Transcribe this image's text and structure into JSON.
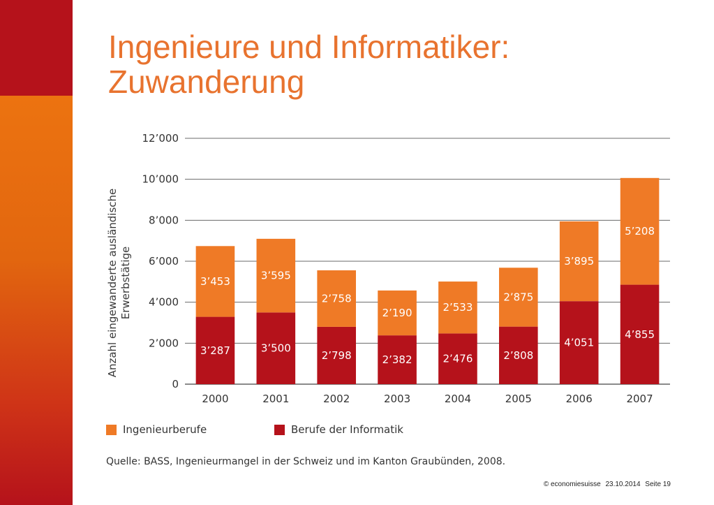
{
  "slide": {
    "title_line1": "Ingenieure und Informatiker:",
    "title_line2": "Zuwanderung",
    "source": "Quelle: BASS, Ingenieurmangel in der Schweiz und im Kanton Graubünden, 2008.",
    "footer_copyright": "© economiesuisse",
    "footer_date": "23.10.2014",
    "footer_page": "Seite 19"
  },
  "colors": {
    "accent": "#e8732f",
    "sidebar_red": "#b5121b",
    "sidebar_orange": "#ec7310",
    "ingenieur": "#ef7a26",
    "informatik": "#b5121b"
  },
  "chart_data": {
    "type": "bar",
    "stacked": true,
    "title": "",
    "xlabel": "",
    "ylabel_line1": "Anzahl eingewanderte ausländische",
    "ylabel_line2": "Erwerbstätige",
    "ylim": [
      0,
      12000
    ],
    "yticks": [
      0,
      2000,
      4000,
      6000,
      8000,
      10000,
      12000
    ],
    "ytick_labels": [
      "0",
      "2’000",
      "4’000",
      "6’000",
      "8’000",
      "10’000",
      "12’000"
    ],
    "grid": true,
    "legend_position": "bottom-left",
    "categories": [
      "2000",
      "2001",
      "2002",
      "2003",
      "2004",
      "2005",
      "2006",
      "2007"
    ],
    "series": [
      {
        "name": "Berufe der Informatik",
        "color": "#b5121b",
        "values": [
          3287,
          3500,
          2798,
          2382,
          2476,
          2808,
          4051,
          4855
        ],
        "labels": [
          "3’287",
          "3’500",
          "2’798",
          "2’382",
          "2’476",
          "2’808",
          "4’051",
          "4’855"
        ]
      },
      {
        "name": "Ingenieurberufe",
        "color": "#ef7a26",
        "values": [
          3453,
          3595,
          2758,
          2190,
          2533,
          2875,
          3895,
          5208
        ],
        "labels": [
          "3’453",
          "3’595",
          "2’758",
          "2’190",
          "2’533",
          "2’875",
          "3’895",
          "5’208"
        ]
      }
    ]
  }
}
